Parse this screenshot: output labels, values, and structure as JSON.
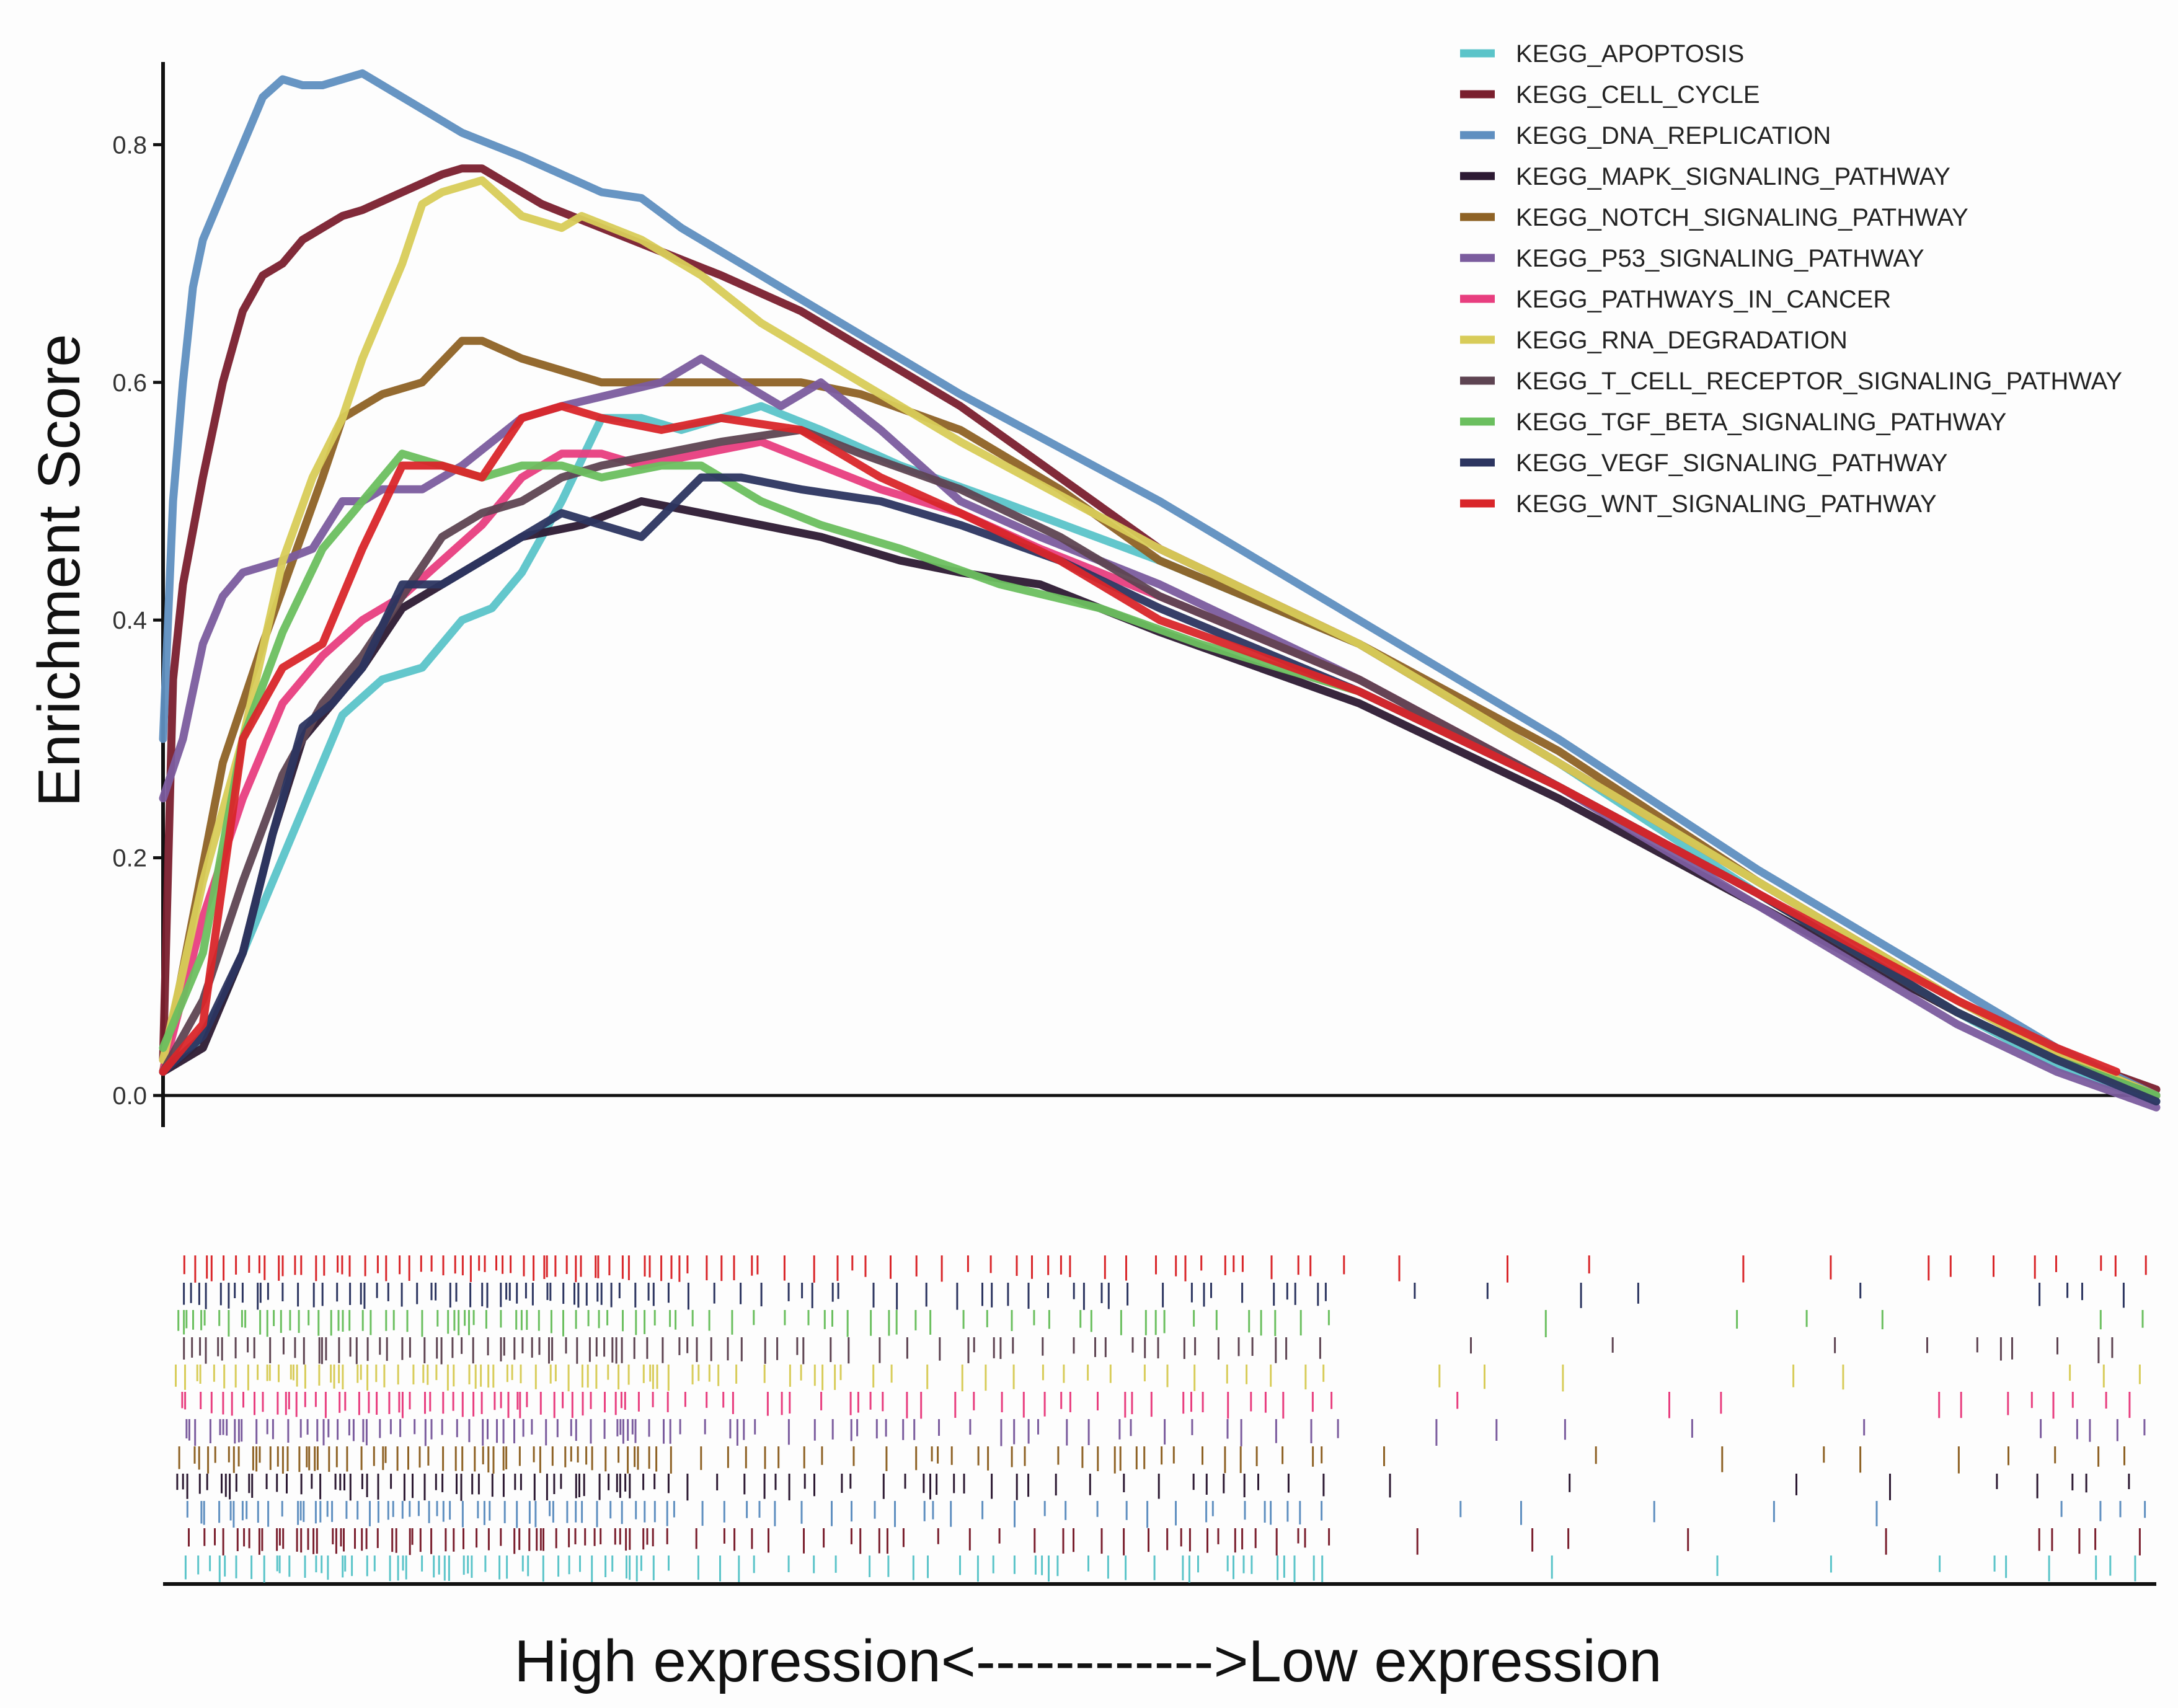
{
  "chart_data": {
    "type": "line",
    "title": "",
    "xlabel": "High expression<------------>Low expression",
    "ylabel": "Enrichment Score",
    "ylim": [
      0,
      0.88
    ],
    "xlim": [
      0,
      1
    ],
    "yticks": [
      0.0,
      0.2,
      0.4,
      0.6,
      0.8
    ],
    "ytick_labels": [
      "0.0",
      "0.2",
      "0.4",
      "0.6",
      "0.8"
    ],
    "legend_position": "top-right",
    "series": [
      {
        "name": "KEGG_APOPTOSIS",
        "color": "#5bc4c9",
        "x": [
          0.0,
          0.015,
          0.03,
          0.045,
          0.06,
          0.075,
          0.09,
          0.11,
          0.13,
          0.15,
          0.165,
          0.18,
          0.2,
          0.22,
          0.24,
          0.26,
          0.28,
          0.3,
          0.33,
          0.37,
          0.42,
          0.5,
          0.6,
          0.7,
          0.8,
          0.9,
          0.95,
          1.0
        ],
        "values": [
          0.02,
          0.04,
          0.08,
          0.14,
          0.2,
          0.26,
          0.32,
          0.35,
          0.36,
          0.4,
          0.41,
          0.44,
          0.5,
          0.57,
          0.57,
          0.56,
          0.57,
          0.58,
          0.56,
          0.53,
          0.5,
          0.45,
          0.38,
          0.28,
          0.17,
          0.07,
          0.025,
          -0.005
        ]
      },
      {
        "name": "KEGG_CELL_CYCLE",
        "color": "#7a1f2e",
        "x": [
          0.0,
          0.005,
          0.01,
          0.02,
          0.03,
          0.04,
          0.05,
          0.06,
          0.07,
          0.08,
          0.09,
          0.1,
          0.12,
          0.14,
          0.15,
          0.16,
          0.17,
          0.19,
          0.22,
          0.25,
          0.28,
          0.32,
          0.36,
          0.4,
          0.45,
          0.5,
          0.6,
          0.7,
          0.8,
          0.9,
          0.95,
          1.0
        ],
        "values": [
          0.03,
          0.35,
          0.43,
          0.52,
          0.6,
          0.66,
          0.69,
          0.7,
          0.72,
          0.73,
          0.74,
          0.745,
          0.76,
          0.775,
          0.78,
          0.78,
          0.77,
          0.75,
          0.73,
          0.71,
          0.69,
          0.66,
          0.62,
          0.58,
          0.52,
          0.46,
          0.38,
          0.28,
          0.18,
          0.08,
          0.035,
          0.005
        ]
      },
      {
        "name": "KEGG_DNA_REPLICATION",
        "color": "#5f8fc0",
        "x": [
          0.0,
          0.005,
          0.01,
          0.015,
          0.02,
          0.03,
          0.035,
          0.04,
          0.05,
          0.06,
          0.07,
          0.08,
          0.1,
          0.12,
          0.15,
          0.18,
          0.22,
          0.24,
          0.26,
          0.3,
          0.35,
          0.4,
          0.5,
          0.6,
          0.7,
          0.8,
          0.9,
          0.95,
          1.0
        ],
        "values": [
          0.3,
          0.5,
          0.6,
          0.68,
          0.72,
          0.76,
          0.78,
          0.8,
          0.84,
          0.855,
          0.85,
          0.85,
          0.86,
          0.84,
          0.81,
          0.79,
          0.76,
          0.755,
          0.73,
          0.69,
          0.64,
          0.59,
          0.5,
          0.4,
          0.3,
          0.19,
          0.09,
          0.04,
          0.0
        ]
      },
      {
        "name": "KEGG_MAPK_SIGNALING_PATHWAY",
        "color": "#2d1a33",
        "x": [
          0.0,
          0.02,
          0.04,
          0.055,
          0.07,
          0.085,
          0.1,
          0.12,
          0.15,
          0.18,
          0.21,
          0.24,
          0.27,
          0.3,
          0.33,
          0.37,
          0.4,
          0.44,
          0.5,
          0.6,
          0.7,
          0.8,
          0.9,
          0.95,
          1.0
        ],
        "values": [
          0.02,
          0.04,
          0.12,
          0.22,
          0.3,
          0.33,
          0.36,
          0.41,
          0.44,
          0.47,
          0.48,
          0.5,
          0.49,
          0.48,
          0.47,
          0.45,
          0.44,
          0.43,
          0.39,
          0.33,
          0.25,
          0.16,
          0.07,
          0.03,
          0.0
        ]
      },
      {
        "name": "KEGG_NOTCH_SIGNALING_PATHWAY",
        "color": "#8e6225",
        "x": [
          0.0,
          0.03,
          0.05,
          0.065,
          0.08,
          0.09,
          0.1,
          0.11,
          0.13,
          0.15,
          0.16,
          0.18,
          0.2,
          0.22,
          0.25,
          0.28,
          0.32,
          0.35,
          0.4,
          0.45,
          0.5,
          0.6,
          0.7,
          0.8,
          0.9,
          0.95,
          1.0
        ],
        "values": [
          0.02,
          0.28,
          0.38,
          0.45,
          0.52,
          0.57,
          0.58,
          0.59,
          0.6,
          0.635,
          0.635,
          0.62,
          0.61,
          0.6,
          0.6,
          0.6,
          0.6,
          0.59,
          0.56,
          0.51,
          0.45,
          0.38,
          0.29,
          0.18,
          0.08,
          0.035,
          0.0
        ]
      },
      {
        "name": "KEGG_P53_SIGNALING_PATHWAY",
        "color": "#7b5c9e",
        "x": [
          0.0,
          0.01,
          0.02,
          0.03,
          0.04,
          0.06,
          0.075,
          0.09,
          0.1,
          0.11,
          0.13,
          0.15,
          0.18,
          0.2,
          0.25,
          0.27,
          0.29,
          0.31,
          0.33,
          0.36,
          0.4,
          0.44,
          0.5,
          0.6,
          0.7,
          0.8,
          0.9,
          0.95,
          1.0
        ],
        "values": [
          0.25,
          0.3,
          0.38,
          0.42,
          0.44,
          0.45,
          0.46,
          0.5,
          0.5,
          0.51,
          0.51,
          0.53,
          0.57,
          0.58,
          0.6,
          0.62,
          0.6,
          0.58,
          0.6,
          0.56,
          0.5,
          0.47,
          0.43,
          0.35,
          0.26,
          0.16,
          0.06,
          0.02,
          -0.01
        ]
      },
      {
        "name": "KEGG_PATHWAYS_IN_CANCER",
        "color": "#e83e7f",
        "x": [
          0.0,
          0.02,
          0.04,
          0.06,
          0.08,
          0.1,
          0.12,
          0.14,
          0.16,
          0.18,
          0.2,
          0.22,
          0.24,
          0.27,
          0.3,
          0.33,
          0.36,
          0.4,
          0.44,
          0.5,
          0.6,
          0.7,
          0.8,
          0.9,
          0.95,
          1.0
        ],
        "values": [
          0.02,
          0.15,
          0.25,
          0.33,
          0.37,
          0.4,
          0.42,
          0.45,
          0.48,
          0.52,
          0.54,
          0.54,
          0.53,
          0.54,
          0.55,
          0.53,
          0.51,
          0.49,
          0.46,
          0.42,
          0.35,
          0.26,
          0.17,
          0.07,
          0.03,
          0.0
        ]
      },
      {
        "name": "KEGG_RNA_DEGRADATION",
        "color": "#d8cc59",
        "x": [
          0.0,
          0.02,
          0.04,
          0.06,
          0.075,
          0.09,
          0.1,
          0.12,
          0.13,
          0.14,
          0.16,
          0.18,
          0.2,
          0.21,
          0.24,
          0.27,
          0.3,
          0.35,
          0.4,
          0.5,
          0.6,
          0.7,
          0.8,
          0.9,
          0.95,
          1.0
        ],
        "values": [
          0.03,
          0.18,
          0.3,
          0.45,
          0.52,
          0.57,
          0.62,
          0.7,
          0.75,
          0.76,
          0.77,
          0.74,
          0.73,
          0.74,
          0.72,
          0.69,
          0.65,
          0.6,
          0.55,
          0.46,
          0.38,
          0.28,
          0.18,
          0.08,
          0.035,
          0.0
        ]
      },
      {
        "name": "KEGG_T_CELL_RECEPTOR_SIGNALING_PATHWAY",
        "color": "#5e4452",
        "x": [
          0.0,
          0.02,
          0.04,
          0.06,
          0.08,
          0.1,
          0.12,
          0.14,
          0.16,
          0.18,
          0.2,
          0.22,
          0.25,
          0.28,
          0.32,
          0.35,
          0.4,
          0.45,
          0.5,
          0.6,
          0.7,
          0.8,
          0.9,
          0.95,
          1.0
        ],
        "values": [
          0.02,
          0.08,
          0.18,
          0.27,
          0.33,
          0.37,
          0.42,
          0.47,
          0.49,
          0.5,
          0.52,
          0.53,
          0.54,
          0.55,
          0.56,
          0.54,
          0.51,
          0.47,
          0.42,
          0.35,
          0.26,
          0.17,
          0.07,
          0.03,
          0.0
        ]
      },
      {
        "name": "KEGG_TGF_BETA_SIGNALING_PATHWAY",
        "color": "#6bbf5f",
        "x": [
          0.0,
          0.02,
          0.04,
          0.06,
          0.08,
          0.1,
          0.12,
          0.14,
          0.16,
          0.18,
          0.2,
          0.22,
          0.25,
          0.27,
          0.3,
          0.33,
          0.37,
          0.42,
          0.47,
          0.52,
          0.6,
          0.7,
          0.8,
          0.9,
          0.95,
          1.0
        ],
        "values": [
          0.04,
          0.12,
          0.3,
          0.39,
          0.46,
          0.5,
          0.54,
          0.53,
          0.52,
          0.53,
          0.53,
          0.52,
          0.53,
          0.53,
          0.5,
          0.48,
          0.46,
          0.43,
          0.41,
          0.38,
          0.34,
          0.26,
          0.17,
          0.07,
          0.03,
          0.0
        ]
      },
      {
        "name": "KEGG_VEGF_SIGNALING_PATHWAY",
        "color": "#2c3560",
        "x": [
          0.0,
          0.02,
          0.04,
          0.055,
          0.07,
          0.085,
          0.1,
          0.12,
          0.14,
          0.16,
          0.18,
          0.2,
          0.22,
          0.24,
          0.27,
          0.29,
          0.32,
          0.36,
          0.4,
          0.45,
          0.5,
          0.6,
          0.7,
          0.8,
          0.9,
          0.95,
          1.0
        ],
        "values": [
          0.02,
          0.05,
          0.12,
          0.22,
          0.31,
          0.33,
          0.36,
          0.43,
          0.43,
          0.45,
          0.47,
          0.49,
          0.48,
          0.47,
          0.52,
          0.52,
          0.51,
          0.5,
          0.48,
          0.45,
          0.41,
          0.34,
          0.26,
          0.17,
          0.07,
          0.03,
          -0.005
        ]
      },
      {
        "name": "KEGG_WNT_SIGNALING_PATHWAY",
        "color": "#d9262a",
        "x": [
          0.0,
          0.02,
          0.04,
          0.06,
          0.08,
          0.1,
          0.12,
          0.14,
          0.16,
          0.18,
          0.2,
          0.22,
          0.25,
          0.28,
          0.32,
          0.36,
          0.4,
          0.45,
          0.5,
          0.6,
          0.7,
          0.8,
          0.9,
          0.95,
          0.98
        ],
        "values": [
          0.02,
          0.06,
          0.3,
          0.36,
          0.38,
          0.46,
          0.53,
          0.53,
          0.52,
          0.57,
          0.58,
          0.57,
          0.56,
          0.57,
          0.56,
          0.52,
          0.49,
          0.45,
          0.4,
          0.34,
          0.26,
          0.17,
          0.08,
          0.04,
          0.02
        ]
      }
    ]
  }
}
